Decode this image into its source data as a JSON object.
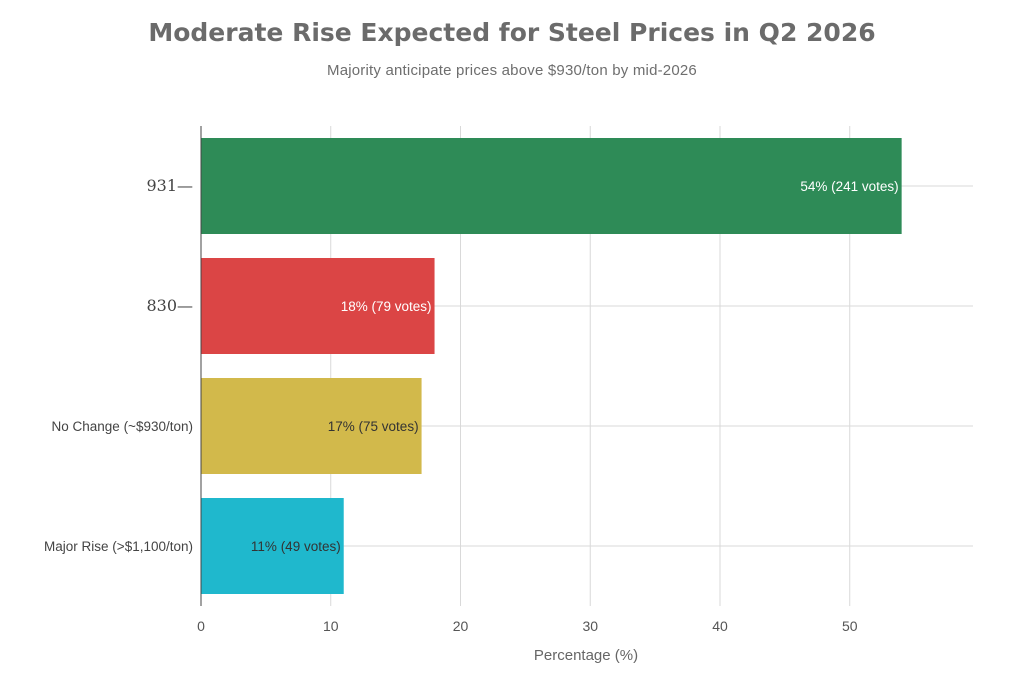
{
  "chart_data": {
    "type": "bar",
    "orientation": "horizontal",
    "title": "Moderate Rise Expected for Steel Prices in Q2 2026",
    "subtitle": "Majority anticipate prices above $930/ton by mid-2026",
    "xlabel": "Percentage (%)",
    "ylabel": "",
    "xlim": [
      0,
      59.5
    ],
    "xticks": [
      0,
      10,
      20,
      30,
      40,
      50
    ],
    "grid": true,
    "categories": [
      "931—",
      "830—",
      "No Change (~$930/ton)",
      "Major Rise (>$1,100/ton)"
    ],
    "values": [
      54,
      18,
      17,
      11
    ],
    "data_labels": [
      "54% (241 votes)",
      "18% (79 votes)",
      "17% (75 votes)",
      "11% (49 votes)"
    ],
    "colors": [
      "#2e8b57",
      "#db4545",
      "#d2b94b",
      "#1fb8cd"
    ],
    "label_colors": [
      "#ffffff",
      "#ffffff",
      "#333333",
      "#333333"
    ]
  }
}
